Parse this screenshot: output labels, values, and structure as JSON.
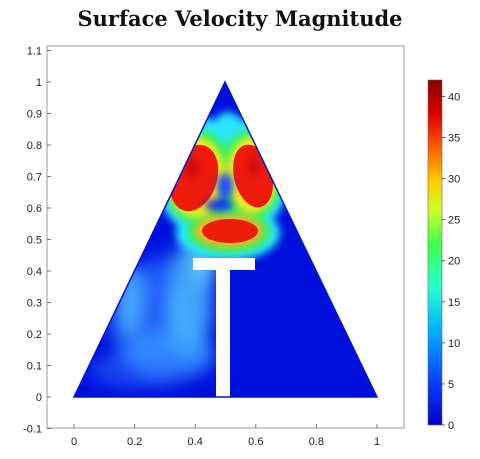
{
  "chart_data": {
    "type": "heatmap",
    "title": "Surface Velocity Magnitude",
    "xlabel": "",
    "ylabel": "",
    "xlim": [
      -0.05,
      1.1
    ],
    "ylim": [
      -0.1,
      1.1
    ],
    "x_ticks": [
      "0",
      "0.2",
      "0.4",
      "0.6",
      "0.8",
      "1"
    ],
    "y_ticks": [
      "-0.1",
      "0",
      "0.1",
      "0.2",
      "0.3",
      "0.4",
      "0.5",
      "0.6",
      "0.7",
      "0.8",
      "0.9",
      "1",
      "1.1"
    ],
    "colorbar": {
      "range": [
        0,
        42
      ],
      "ticks": [
        "0",
        "5",
        "10",
        "15",
        "20",
        "25",
        "30",
        "35",
        "40"
      ],
      "colormap": [
        "#0000c8",
        "#0a3cff",
        "#00b4ff",
        "#28ffd2",
        "#3cff50",
        "#c8ff28",
        "#ffd200",
        "#ff6400",
        "#dc0000",
        "#8c0000"
      ]
    },
    "domain": {
      "shape": "triangle",
      "vertices": [
        [
          0,
          0
        ],
        [
          0.5,
          1
        ],
        [
          1,
          0
        ]
      ],
      "obstacle": "T-shaped block",
      "obstacle_top_bar": {
        "x": [
          0.4,
          0.59
        ],
        "y": [
          0.39,
          0.45
        ]
      },
      "obstacle_stem": {
        "x": [
          0.47,
          0.51
        ],
        "y": [
          0,
          0.39
        ]
      }
    },
    "features": [
      {
        "name": "left vortex",
        "x": 0.38,
        "y": 0.71,
        "magnitude": 40
      },
      {
        "name": "right vortex",
        "x": 0.6,
        "y": 0.72,
        "magnitude": 40
      },
      {
        "name": "lower vortex",
        "x": 0.51,
        "y": 0.52,
        "magnitude": 38
      },
      {
        "name": "left channel jet",
        "x": 0.27,
        "y": 0.26,
        "magnitude": 12
      }
    ]
  }
}
